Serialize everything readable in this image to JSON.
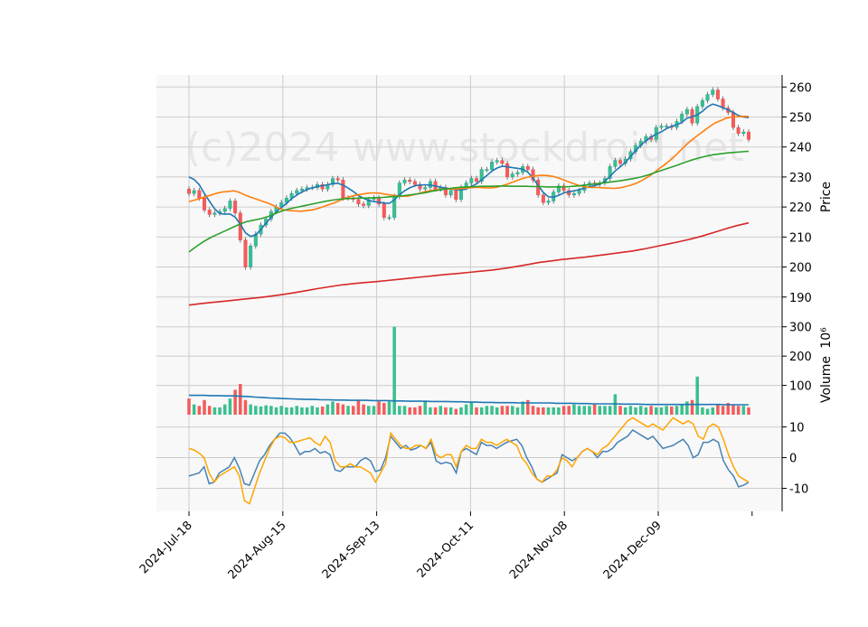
{
  "colors": {
    "up": "#26a69a",
    "up_fill": "#3bbf8e",
    "down": "#ef5350",
    "down_fill": "#f25c5c",
    "ma5": "#1f77b4",
    "ma10": "#ff7f0e",
    "ma20": "#2ca02c",
    "ma100": "#d62728",
    "vol_ma": "#1f77b4",
    "osc_a": "#4682b4",
    "osc_b": "#ffa500",
    "grid": "#cccccc",
    "panel_bg": "#f8f8f8"
  },
  "watermark": "(c)2024 www.stockdroid.net",
  "chart_data": [
    {
      "type": "candlestick",
      "panel": "price",
      "ylabel": "Price",
      "ylim": [
        183,
        264
      ],
      "yticks": [
        190,
        200,
        210,
        220,
        230,
        240,
        250,
        260
      ],
      "grid": true,
      "x_tick_labels": [
        "2024-Jul-18",
        "2024-Aug-15",
        "2024-Sep-13",
        "2024-Oct-11",
        "2024-Nov-08",
        "2024-Dec-09"
      ],
      "start": 226.0,
      "closes": [
        224.5,
        225.5,
        223.0,
        219.0,
        217.5,
        218.0,
        218.5,
        219.5,
        222.0,
        218.0,
        209.0,
        200.0,
        207.0,
        211.0,
        214.0,
        216.0,
        218.5,
        220.0,
        221.5,
        223.0,
        224.5,
        225.5,
        226.0,
        226.5,
        226.5,
        227.5,
        226.0,
        227.5,
        229.5,
        229.0,
        223.0,
        223.0,
        222.5,
        221.0,
        220.5,
        222.5,
        223.0,
        221.0,
        216.5,
        216.5,
        223.5,
        228.0,
        229.0,
        228.5,
        227.5,
        226.0,
        226.5,
        228.5,
        226.0,
        226.5,
        224.0,
        225.5,
        222.5,
        226.5,
        228.0,
        229.5,
        228.5,
        232.5,
        232.5,
        235.0,
        235.5,
        234.5,
        230.0,
        231.0,
        231.5,
        233.5,
        232.5,
        229.0,
        224.0,
        221.5,
        222.0,
        225.0,
        227.0,
        225.5,
        224.0,
        224.5,
        225.5,
        227.5,
        228.0,
        227.5,
        228.0,
        229.5,
        233.5,
        235.5,
        234.5,
        236.0,
        238.5,
        240.5,
        242.0,
        243.5,
        242.5,
        246.5,
        247.0,
        247.0,
        246.5,
        248.5,
        251.0,
        252.5,
        248.0,
        253.5,
        255.5,
        257.5,
        259.0,
        256.0,
        253.0,
        251.5,
        246.5,
        244.5,
        245.0,
        242.5
      ],
      "ma_series": [
        {
          "name": "MA5",
          "values": [
            230.0,
            229.2,
            227.4,
            224.5,
            221.9,
            219.4,
            217.8,
            217.6,
            217.7,
            216.6,
            214.3,
            211.4,
            210.2,
            210.7,
            212.5,
            214.6,
            216.6,
            218.4,
            219.8,
            221.2,
            222.8,
            224.0,
            225.0,
            225.8,
            226.4,
            226.8,
            227.1,
            227.4,
            227.8,
            227.9,
            227.3,
            226.3,
            225.2,
            223.8,
            222.9,
            222.2,
            221.8,
            221.6,
            221.3,
            221.2,
            222.4,
            224.1,
            225.4,
            226.4,
            227.1,
            227.3,
            227.4,
            227.3,
            227.0,
            226.6,
            226.3,
            226.0,
            225.8,
            225.7,
            226.0,
            226.9,
            227.7,
            229.1,
            230.5,
            232.0,
            233.0,
            233.6,
            233.4,
            233.1,
            232.9,
            232.6,
            231.6,
            229.6,
            227.2,
            224.9,
            223.4,
            223.3,
            223.9,
            224.7,
            225.1,
            225.4,
            225.8,
            226.3,
            226.8,
            227.1,
            227.6,
            228.6,
            230.2,
            232.0,
            233.4,
            234.9,
            236.8,
            238.8,
            240.6,
            242.1,
            243.3,
            244.3,
            245.1,
            246.1,
            246.9,
            247.4,
            248.2,
            249.6,
            250.1,
            250.7,
            251.9,
            253.4,
            254.3,
            253.8,
            253.1,
            252.4,
            251.5,
            250.5,
            250.0,
            249.8
          ]
        },
        {
          "name": "MA10",
          "values": [
            221.8,
            222.3,
            222.8,
            223.5,
            224.0,
            224.6,
            225.0,
            225.2,
            225.4,
            224.9,
            224.0,
            223.3,
            222.7,
            222.0,
            221.4,
            220.6,
            219.6,
            219.0,
            218.8,
            218.7,
            218.6,
            218.8,
            219.0,
            219.5,
            220.1,
            220.8,
            221.4,
            222.2,
            223.0,
            223.6,
            224.0,
            224.3,
            224.6,
            224.7,
            224.6,
            224.3,
            224.0,
            223.8,
            223.6,
            223.6,
            224.0,
            224.5,
            225.0,
            225.4,
            225.7,
            225.9,
            226.0,
            226.0,
            226.0,
            226.2,
            226.4,
            226.5,
            226.5,
            226.4,
            226.4,
            226.6,
            227.1,
            227.7,
            228.4,
            229.1,
            229.7,
            230.1,
            230.4,
            230.6,
            230.5,
            230.2,
            229.7,
            229.0,
            228.3,
            227.6,
            227.0,
            226.6,
            226.5,
            226.5,
            226.4,
            226.3,
            226.2,
            226.4,
            226.8,
            227.3,
            228.0,
            228.9,
            230.0,
            231.3,
            232.8,
            234.1,
            235.6,
            237.3,
            239.2,
            241.0,
            242.6,
            244.0,
            245.4,
            246.8,
            248.0,
            248.8,
            249.6,
            250.0,
            250.1,
            250.2,
            250.2
          ]
        },
        {
          "name": "MA20",
          "values": [
            205.0,
            206.8,
            208.4,
            209.8,
            210.9,
            212.0,
            213.1,
            214.2,
            215.1,
            215.6,
            216.1,
            216.8,
            217.8,
            218.7,
            219.4,
            219.9,
            220.4,
            220.9,
            221.4,
            221.9,
            222.3,
            222.6,
            222.8,
            222.9,
            223.0,
            223.0,
            223.1,
            223.2,
            223.4,
            223.6,
            223.8,
            224.1,
            224.4,
            224.8,
            225.3,
            225.7,
            226.1,
            226.4,
            226.6,
            226.7,
            226.8,
            226.9,
            226.9,
            227.0,
            227.0,
            226.9,
            226.9,
            226.9,
            226.8,
            226.8,
            226.7,
            226.7,
            226.7,
            226.8,
            227.0,
            227.2,
            227.5,
            227.8,
            228.1,
            228.4,
            228.7,
            229.1,
            229.5,
            230.0,
            230.7,
            231.5,
            232.3,
            233.1,
            233.9,
            234.8,
            235.6,
            236.3,
            236.9,
            237.4,
            237.7,
            238.0,
            238.2,
            238.4,
            238.6
          ]
        },
        {
          "name": "MA100",
          "values": [
            187.3,
            187.8,
            188.2,
            188.6,
            189.0,
            189.4,
            189.8,
            190.3,
            190.8,
            191.4,
            192.1,
            192.8,
            193.4,
            194.0,
            194.4,
            194.8,
            195.1,
            195.5,
            195.9,
            196.3,
            196.7,
            197.1,
            197.5,
            197.8,
            198.2,
            198.6,
            199.0,
            199.5,
            200.1,
            200.8,
            201.5,
            202.0,
            202.5,
            202.9,
            203.3,
            203.8,
            204.3,
            204.8,
            205.3,
            206.0,
            206.8,
            207.6,
            208.4,
            209.3,
            210.3,
            211.5,
            212.7,
            213.8,
            214.7
          ]
        }
      ]
    },
    {
      "type": "bar",
      "panel": "volume",
      "ylabel": "Volume",
      "scale_label": "10⁶",
      "ylim": [
        0,
        330
      ],
      "yticks": [
        100,
        200,
        300
      ],
      "volumes": [
        55,
        35,
        30,
        50,
        30,
        25,
        25,
        35,
        55,
        85,
        105,
        50,
        35,
        30,
        28,
        32,
        30,
        25,
        30,
        25,
        25,
        30,
        25,
        25,
        30,
        25,
        28,
        35,
        45,
        40,
        35,
        30,
        30,
        50,
        35,
        30,
        30,
        45,
        40,
        45,
        300,
        30,
        30,
        25,
        25,
        30,
        45,
        25,
        25,
        30,
        25,
        25,
        20,
        25,
        35,
        45,
        25,
        25,
        30,
        30,
        25,
        30,
        30,
        30,
        25,
        45,
        50,
        30,
        25,
        25,
        25,
        25,
        25,
        30,
        30,
        35,
        30,
        30,
        30,
        35,
        30,
        30,
        30,
        70,
        30,
        25,
        30,
        25,
        30,
        25,
        30,
        25,
        25,
        30,
        28,
        30,
        35,
        45,
        50,
        130,
        25,
        20,
        25,
        35,
        30,
        40,
        35,
        30,
        30,
        25
      ],
      "volume_ma": [
        66,
        66,
        66,
        65,
        65,
        64,
        64,
        63,
        62,
        60,
        59,
        57,
        56,
        55,
        54,
        53,
        52,
        52,
        51,
        51,
        50,
        50,
        49,
        49,
        49,
        48,
        48,
        48,
        47,
        47,
        46,
        46,
        46,
        45,
        45,
        45,
        44,
        44,
        43,
        43,
        42,
        42,
        41,
        41,
        41,
        40,
        40,
        40,
        40,
        40,
        39,
        39,
        39,
        38,
        38,
        37,
        37,
        37,
        37,
        36,
        36,
        36,
        35,
        35,
        35,
        35,
        35,
        35,
        35,
        35,
        35,
        35,
        35,
        34,
        34,
        34,
        34
      ]
    },
    {
      "type": "line",
      "panel": "oscillator",
      "ylim": [
        -17.5,
        14
      ],
      "yticks": [
        10,
        0,
        -10
      ],
      "series": [
        {
          "values": [
            -6,
            -5.5,
            -5,
            -3,
            -8.5,
            -8,
            -5,
            -4,
            -3,
            0,
            -3.5,
            -8.5,
            -9,
            -5,
            -1,
            1,
            4,
            6,
            8,
            8,
            6.5,
            4,
            1,
            2,
            2,
            3,
            1.5,
            2,
            1,
            -4,
            -4.5,
            -3,
            -3,
            -3,
            -1,
            0,
            -1,
            -4.5,
            -4,
            0,
            7,
            5,
            3,
            4,
            2.5,
            3,
            4,
            3,
            5,
            -1,
            -2,
            -1.5,
            -2,
            -5,
            2,
            3,
            2,
            1,
            5,
            4,
            4,
            3,
            4,
            5,
            5.5,
            6,
            4,
            0,
            -3,
            -7,
            -8,
            -7,
            -6,
            -5,
            1,
            0,
            -1,
            0,
            2,
            3,
            2,
            0,
            2,
            2,
            3,
            5,
            6,
            7,
            9,
            8,
            7,
            6,
            7,
            5,
            3,
            3.5,
            4,
            5,
            6,
            4,
            0,
            1,
            5,
            5,
            6,
            5,
            -1,
            -4,
            -6,
            -9.5,
            -9,
            -8
          ]
        },
        {
          "values": [
            3,
            2.5,
            1.5,
            0,
            -5,
            -8,
            -6,
            -5,
            -4,
            -3,
            -6,
            -14,
            -15,
            -10,
            -5,
            -1,
            3,
            6,
            7,
            6.5,
            5,
            5,
            5.5,
            6,
            6.5,
            5,
            4,
            7,
            5,
            -1,
            -3,
            -3,
            -2,
            -3,
            -3,
            -4,
            -5,
            -8,
            -5,
            -2,
            8,
            6,
            4,
            3,
            3,
            4,
            4,
            3,
            6,
            1,
            0,
            1,
            1,
            -3,
            2,
            4,
            3,
            3,
            6,
            5,
            5,
            4,
            5,
            6,
            5,
            4,
            0,
            -2,
            -5,
            -7,
            -8,
            -6,
            -6,
            -4,
            0,
            -1,
            -3,
            0,
            2,
            3,
            2,
            1,
            3,
            4,
            6,
            8,
            10,
            12,
            13,
            12,
            11,
            10,
            11,
            10,
            9,
            11,
            13,
            12,
            11,
            12,
            11,
            7,
            6,
            10,
            11,
            10,
            6,
            1,
            -3,
            -6,
            -7,
            -8
          ]
        }
      ]
    }
  ]
}
